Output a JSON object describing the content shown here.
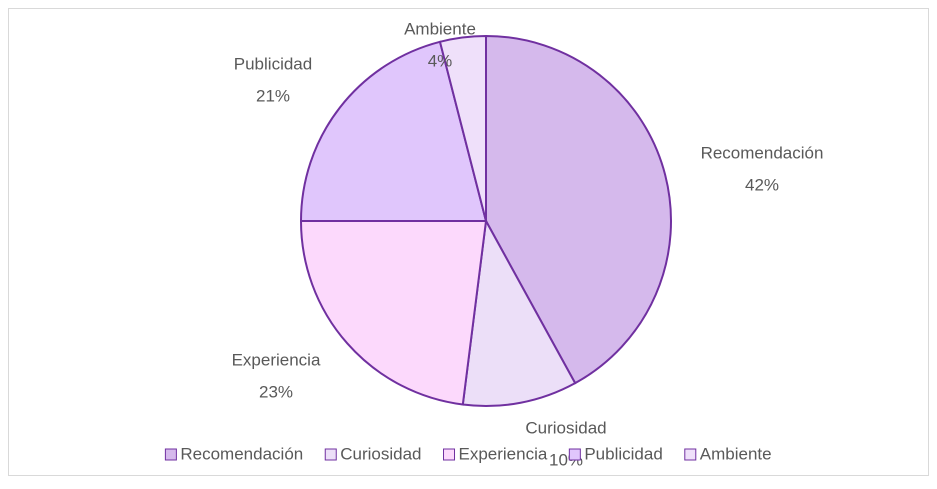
{
  "chart_data": {
    "type": "pie",
    "categories": [
      "Recomendación",
      "Curiosidad",
      "Experiencia",
      "Publicidad",
      "Ambiente"
    ],
    "values": [
      42,
      10,
      23,
      21,
      4
    ],
    "value_labels": [
      "42%",
      "10%",
      "23%",
      "21%",
      "4%"
    ],
    "colors": [
      "#d5b9ec",
      "#ecdff8",
      "#fcd9fc",
      "#e0c6fc",
      "#efe0fa"
    ],
    "edge_color": "#7030a0",
    "legend": "bottom"
  }
}
